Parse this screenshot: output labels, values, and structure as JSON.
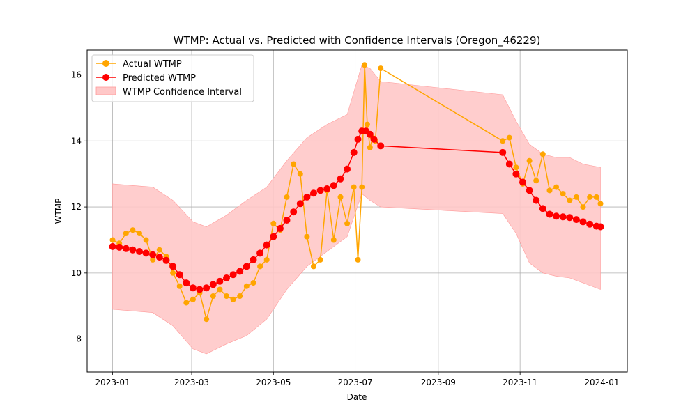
{
  "chart_data": {
    "type": "line",
    "title": "WTMP: Actual vs. Predicted with Confidence Intervals (Oregon_46229)",
    "xlabel": "Date",
    "ylabel": "WTMP",
    "xlim": [
      "2022-12-13",
      "2024-01-20"
    ],
    "ylim": [
      7.0,
      16.75
    ],
    "x_ticks": [
      "2023-01",
      "2023-03",
      "2023-05",
      "2023-07",
      "2023-09",
      "2023-11",
      "2024-01"
    ],
    "y_ticks": [
      8,
      10,
      12,
      14,
      16
    ],
    "grid": true,
    "legend_position": "top-left",
    "colors": {
      "actual": "#ffa500",
      "predicted": "#ff0000",
      "confidence": "#ffc8c8"
    },
    "series": [
      {
        "name": "Actual WTMP",
        "x": [
          "2023-01-01",
          "2023-01-06",
          "2023-01-11",
          "2023-01-16",
          "2023-01-21",
          "2023-01-26",
          "2023-01-31",
          "2023-02-05",
          "2023-02-10",
          "2023-02-15",
          "2023-02-20",
          "2023-02-25",
          "2023-03-02",
          "2023-03-07",
          "2023-03-12",
          "2023-03-17",
          "2023-03-22",
          "2023-03-27",
          "2023-04-01",
          "2023-04-06",
          "2023-04-11",
          "2023-04-16",
          "2023-04-21",
          "2023-04-26",
          "2023-05-01",
          "2023-05-06",
          "2023-05-11",
          "2023-05-16",
          "2023-05-21",
          "2023-05-26",
          "2023-05-31",
          "2023-06-05",
          "2023-06-10",
          "2023-06-15",
          "2023-06-20",
          "2023-06-25",
          "2023-06-30",
          "2023-07-03",
          "2023-07-06",
          "2023-07-08",
          "2023-07-10",
          "2023-07-12",
          "2023-07-14",
          "2023-07-16",
          "2023-07-20",
          "2023-10-19",
          "2023-10-24",
          "2023-10-29",
          "2023-11-03",
          "2023-11-08",
          "2023-11-13",
          "2023-11-18",
          "2023-11-23",
          "2023-11-28",
          "2023-12-03",
          "2023-12-08",
          "2023-12-13",
          "2023-12-18",
          "2023-12-23",
          "2023-12-28",
          "2023-12-31"
        ],
        "values": [
          11.0,
          10.9,
          11.2,
          11.3,
          11.2,
          11.0,
          10.4,
          10.7,
          10.5,
          10.0,
          9.6,
          9.1,
          9.2,
          9.4,
          8.6,
          9.3,
          9.5,
          9.3,
          9.2,
          9.3,
          9.6,
          9.7,
          10.2,
          10.4,
          11.5,
          11.3,
          12.3,
          13.3,
          13.0,
          11.1,
          10.2,
          10.4,
          12.5,
          11.0,
          12.3,
          11.5,
          12.6,
          10.4,
          12.6,
          16.3,
          14.5,
          13.8,
          14.1,
          14.0,
          16.2,
          14.0,
          14.1,
          13.2,
          12.7,
          13.4,
          12.8,
          13.6,
          12.5,
          12.6,
          12.4,
          12.2,
          12.3,
          12.0,
          12.3,
          12.3,
          12.1
        ]
      },
      {
        "name": "Predicted WTMP",
        "x": [
          "2023-01-01",
          "2023-01-06",
          "2023-01-11",
          "2023-01-16",
          "2023-01-21",
          "2023-01-26",
          "2023-01-31",
          "2023-02-05",
          "2023-02-10",
          "2023-02-15",
          "2023-02-20",
          "2023-02-25",
          "2023-03-02",
          "2023-03-07",
          "2023-03-12",
          "2023-03-17",
          "2023-03-22",
          "2023-03-27",
          "2023-04-01",
          "2023-04-06",
          "2023-04-11",
          "2023-04-16",
          "2023-04-21",
          "2023-04-26",
          "2023-05-01",
          "2023-05-06",
          "2023-05-11",
          "2023-05-16",
          "2023-05-21",
          "2023-05-26",
          "2023-05-31",
          "2023-06-05",
          "2023-06-10",
          "2023-06-15",
          "2023-06-20",
          "2023-06-25",
          "2023-06-30",
          "2023-07-03",
          "2023-07-06",
          "2023-07-09",
          "2023-07-12",
          "2023-07-15",
          "2023-07-20",
          "2023-10-19",
          "2023-10-24",
          "2023-10-29",
          "2023-11-03",
          "2023-11-08",
          "2023-11-13",
          "2023-11-18",
          "2023-11-23",
          "2023-11-28",
          "2023-12-03",
          "2023-12-08",
          "2023-12-13",
          "2023-12-18",
          "2023-12-23",
          "2023-12-28",
          "2023-12-31"
        ],
        "values": [
          10.8,
          10.78,
          10.74,
          10.7,
          10.65,
          10.6,
          10.55,
          10.48,
          10.38,
          10.2,
          9.95,
          9.7,
          9.55,
          9.5,
          9.55,
          9.65,
          9.75,
          9.85,
          9.95,
          10.05,
          10.2,
          10.4,
          10.6,
          10.85,
          11.1,
          11.35,
          11.6,
          11.85,
          12.1,
          12.3,
          12.42,
          12.5,
          12.55,
          12.65,
          12.85,
          13.15,
          13.65,
          14.05,
          14.3,
          14.3,
          14.2,
          14.05,
          13.85,
          13.65,
          13.3,
          13.0,
          12.75,
          12.5,
          12.2,
          11.95,
          11.78,
          11.72,
          11.7,
          11.68,
          11.62,
          11.55,
          11.48,
          11.42,
          11.4
        ]
      },
      {
        "name": "WTMP Confidence Interval",
        "x": [
          "2023-01-01",
          "2023-01-16",
          "2023-01-31",
          "2023-02-15",
          "2023-03-02",
          "2023-03-12",
          "2023-03-27",
          "2023-04-11",
          "2023-04-26",
          "2023-05-11",
          "2023-05-26",
          "2023-06-10",
          "2023-06-25",
          "2023-07-06",
          "2023-07-12",
          "2023-07-20",
          "2023-10-19",
          "2023-10-29",
          "2023-11-08",
          "2023-11-18",
          "2023-11-28",
          "2023-12-08",
          "2023-12-18",
          "2023-12-31"
        ],
        "lower": [
          8.9,
          8.85,
          8.8,
          8.4,
          7.7,
          7.55,
          7.85,
          8.1,
          8.6,
          9.5,
          10.2,
          10.65,
          11.1,
          12.4,
          12.2,
          12.0,
          11.8,
          11.2,
          10.3,
          10.0,
          9.9,
          9.85,
          9.7,
          9.5
        ],
        "upper": [
          12.7,
          12.65,
          12.6,
          12.2,
          11.55,
          11.4,
          11.75,
          12.2,
          12.6,
          13.4,
          14.1,
          14.5,
          14.8,
          16.3,
          16.2,
          15.8,
          15.4,
          14.6,
          13.9,
          13.6,
          13.5,
          13.5,
          13.3,
          13.2
        ]
      }
    ]
  }
}
